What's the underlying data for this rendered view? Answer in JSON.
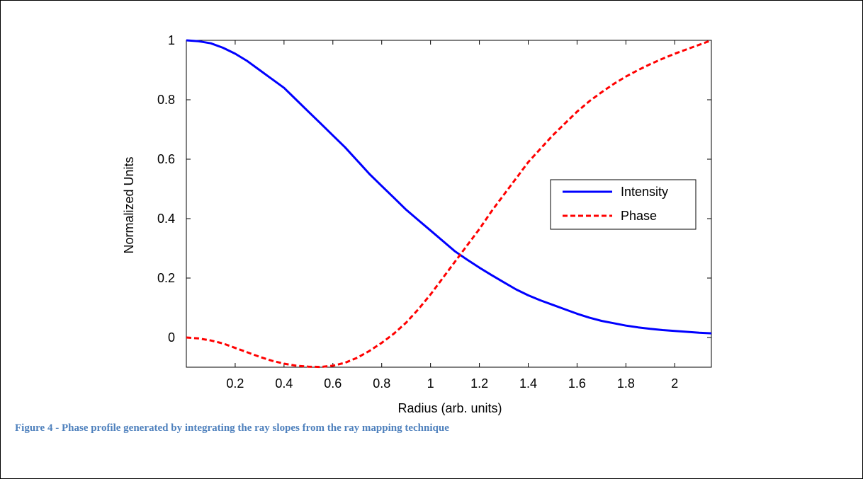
{
  "caption": "Figure 4 - Phase profile generated by integrating the ray slopes from the ray mapping technique",
  "chart_data": {
    "type": "line",
    "xlabel": "Radius (arb. units)",
    "ylabel": "Normalized Units",
    "xlim": [
      0,
      2.15
    ],
    "ylim": [
      -0.1,
      1
    ],
    "xticks": [
      0.2,
      0.4,
      0.6,
      0.8,
      1,
      1.2,
      1.4,
      1.6,
      1.8,
      2
    ],
    "xtick_labels": [
      "0.2",
      "0.4",
      "0.6",
      "0.8",
      "1",
      "1.2",
      "1.4",
      "1.6",
      "1.8",
      "2"
    ],
    "yticks": [
      0,
      0.2,
      0.4,
      0.6,
      0.8,
      1
    ],
    "ytick_labels": [
      "0",
      "0.2",
      "0.4",
      "0.6",
      "0.8",
      "1"
    ],
    "grid": false,
    "legend_position": "center-right",
    "series": [
      {
        "name": "Intensity",
        "color": "#0000ff",
        "style": "solid",
        "x": [
          0,
          0.05,
          0.1,
          0.15,
          0.2,
          0.25,
          0.3,
          0.35,
          0.4,
          0.45,
          0.5,
          0.55,
          0.6,
          0.65,
          0.7,
          0.75,
          0.8,
          0.85,
          0.9,
          0.95,
          1.0,
          1.05,
          1.1,
          1.15,
          1.2,
          1.25,
          1.3,
          1.35,
          1.4,
          1.45,
          1.5,
          1.55,
          1.6,
          1.65,
          1.7,
          1.75,
          1.8,
          1.85,
          1.9,
          1.95,
          2.0,
          2.05,
          2.1,
          2.15
        ],
        "y": [
          1.0,
          0.997,
          0.99,
          0.975,
          0.955,
          0.93,
          0.9,
          0.87,
          0.84,
          0.8,
          0.76,
          0.72,
          0.68,
          0.64,
          0.595,
          0.55,
          0.51,
          0.47,
          0.43,
          0.395,
          0.36,
          0.325,
          0.29,
          0.262,
          0.235,
          0.21,
          0.186,
          0.162,
          0.142,
          0.125,
          0.11,
          0.095,
          0.08,
          0.067,
          0.056,
          0.048,
          0.04,
          0.034,
          0.029,
          0.025,
          0.022,
          0.019,
          0.016,
          0.014
        ]
      },
      {
        "name": "Phase",
        "color": "#ff0000",
        "style": "dashed",
        "x": [
          0,
          0.05,
          0.1,
          0.15,
          0.2,
          0.25,
          0.3,
          0.35,
          0.4,
          0.45,
          0.5,
          0.55,
          0.6,
          0.65,
          0.7,
          0.75,
          0.8,
          0.85,
          0.9,
          0.95,
          1.0,
          1.05,
          1.1,
          1.15,
          1.2,
          1.25,
          1.3,
          1.35,
          1.4,
          1.45,
          1.5,
          1.55,
          1.6,
          1.65,
          1.7,
          1.75,
          1.8,
          1.85,
          1.9,
          1.95,
          2.0,
          2.05,
          2.1,
          2.15
        ],
        "y": [
          0.0,
          -0.003,
          -0.01,
          -0.02,
          -0.035,
          -0.05,
          -0.065,
          -0.078,
          -0.088,
          -0.095,
          -0.098,
          -0.099,
          -0.095,
          -0.085,
          -0.068,
          -0.045,
          -0.018,
          0.013,
          0.05,
          0.095,
          0.145,
          0.2,
          0.255,
          0.31,
          0.365,
          0.425,
          0.48,
          0.535,
          0.59,
          0.635,
          0.68,
          0.72,
          0.76,
          0.795,
          0.825,
          0.853,
          0.878,
          0.9,
          0.92,
          0.938,
          0.955,
          0.97,
          0.985,
          1.0
        ]
      }
    ]
  }
}
